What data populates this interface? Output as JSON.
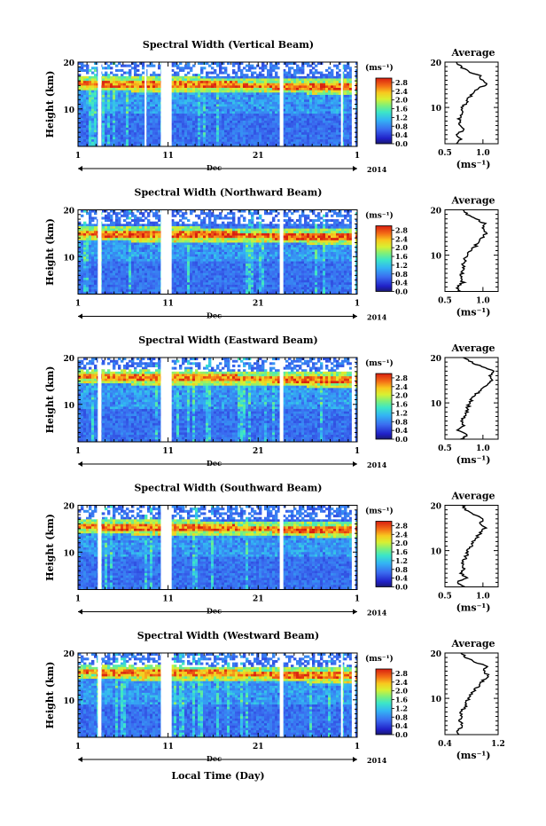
{
  "figure": {
    "x_title": "Local Time (Day)",
    "month_label": "Dec",
    "year_label": "2014"
  },
  "colorbar": {
    "unit": "(ms⁻¹)",
    "ticks": [
      "2.8",
      "2.4",
      "2.0",
      "1.6",
      "1.2",
      "0.8",
      "0.4",
      "0.0"
    ],
    "range": [
      0.0,
      3.0
    ]
  },
  "chart_data": [
    {
      "type": "heatmap",
      "title": "Spectral Width (Vertical Beam)",
      "ylabel": "Height (km)",
      "xlabel": "Local Time (Day)",
      "x_ticks": [
        "1",
        "11",
        "21",
        "1"
      ],
      "y_ticks": [
        "20",
        "10"
      ],
      "ylim": [
        2,
        20
      ],
      "data_gaps_days": [
        [
          3.2,
          3.6
        ],
        [
          8.4,
          8.6
        ],
        [
          10.2,
          11.4
        ],
        [
          23.4,
          23.8
        ],
        [
          30.2,
          30.4
        ],
        [
          31.4,
          31.8
        ]
      ],
      "peak_band_height_km": 15.5,
      "avg_profile": {
        "title": "Average",
        "xlabel": "(ms⁻¹)",
        "x_ticks": [
          "0.5",
          "1.0"
        ],
        "y_ticks": [
          "20",
          "10"
        ],
        "xlim": [
          0.5,
          1.2
        ],
        "height_km": [
          2,
          3,
          4,
          5,
          6,
          7,
          8,
          9,
          10,
          11,
          12,
          13,
          14,
          15,
          16,
          17,
          18,
          19,
          20
        ],
        "width": [
          0.65,
          0.72,
          0.66,
          0.74,
          0.7,
          0.68,
          0.7,
          0.72,
          0.74,
          0.78,
          0.8,
          0.86,
          0.92,
          1.05,
          0.98,
          0.95,
          0.8,
          0.7,
          0.65
        ]
      }
    },
    {
      "type": "heatmap",
      "title": "Spectral Width (Northward Beam)",
      "ylabel": "Height (km)",
      "xlabel": "Local Time (Day)",
      "x_ticks": [
        "1",
        "11",
        "21",
        "1"
      ],
      "y_ticks": [
        "20",
        "10"
      ],
      "ylim": [
        2,
        20
      ],
      "data_gaps_days": [
        [
          3.2,
          3.6
        ],
        [
          10.2,
          11.4
        ],
        [
          23.4,
          23.8
        ],
        [
          31.4,
          31.8
        ]
      ],
      "peak_band_height_km": 15.0,
      "avg_profile": {
        "title": "Average",
        "xlabel": "(ms⁻¹)",
        "x_ticks": [
          "0.5",
          "1.0"
        ],
        "y_ticks": [
          "20",
          "10"
        ],
        "xlim": [
          0.5,
          1.2
        ],
        "height_km": [
          2,
          3,
          4,
          5,
          6,
          7,
          8,
          9,
          10,
          11,
          12,
          13,
          14,
          15,
          16,
          17,
          18,
          19,
          20
        ],
        "width": [
          0.7,
          0.66,
          0.74,
          0.7,
          0.72,
          0.76,
          0.74,
          0.76,
          0.8,
          0.84,
          0.9,
          0.94,
          1.0,
          1.04,
          0.98,
          1.02,
          0.9,
          0.8,
          0.74
        ]
      }
    },
    {
      "type": "heatmap",
      "title": "Spectral Width (Eastward Beam)",
      "ylabel": "Height (km)",
      "xlabel": "Local Time (Day)",
      "x_ticks": [
        "1",
        "11",
        "21",
        "1"
      ],
      "y_ticks": [
        "20",
        "10"
      ],
      "ylim": [
        2,
        20
      ],
      "data_gaps_days": [
        [
          3.2,
          3.6
        ],
        [
          10.2,
          11.4
        ],
        [
          23.4,
          23.8
        ],
        [
          31.4,
          31.8
        ]
      ],
      "peak_band_height_km": 16.0,
      "avg_profile": {
        "title": "Average",
        "xlabel": "(ms⁻¹)",
        "x_ticks": [
          "0.5",
          "1.0"
        ],
        "y_ticks": [
          "20",
          "10"
        ],
        "xlim": [
          0.5,
          1.2
        ],
        "height_km": [
          2,
          3,
          4,
          5,
          6,
          7,
          8,
          9,
          10,
          11,
          12,
          13,
          14,
          15,
          16,
          17,
          18,
          19,
          20
        ],
        "width": [
          0.72,
          0.8,
          0.68,
          0.74,
          0.72,
          0.76,
          0.78,
          0.8,
          0.82,
          0.86,
          0.92,
          0.98,
          1.04,
          1.12,
          1.1,
          1.16,
          1.0,
          0.84,
          0.74
        ]
      }
    },
    {
      "type": "heatmap",
      "title": "Spectral Width (Southward Beam)",
      "ylabel": "Height (km)",
      "xlabel": "Local Time (Day)",
      "x_ticks": [
        "1",
        "11",
        "21",
        "1"
      ],
      "y_ticks": [
        "20",
        "10"
      ],
      "ylim": [
        2,
        20
      ],
      "data_gaps_days": [
        [
          3.2,
          3.6
        ],
        [
          10.2,
          11.4
        ],
        [
          23.4,
          23.8
        ],
        [
          31.4,
          31.8
        ]
      ],
      "peak_band_height_km": 15.5,
      "avg_profile": {
        "title": "Average",
        "xlabel": "(ms⁻¹)",
        "x_ticks": [
          "0.5",
          "1.0"
        ],
        "y_ticks": [
          "20",
          "10"
        ],
        "xlim": [
          0.5,
          1.2
        ],
        "height_km": [
          2,
          3,
          4,
          5,
          6,
          7,
          8,
          9,
          10,
          11,
          12,
          13,
          14,
          15,
          16,
          17,
          18,
          19,
          20
        ],
        "width": [
          0.74,
          0.66,
          0.78,
          0.7,
          0.74,
          0.72,
          0.76,
          0.78,
          0.8,
          0.84,
          0.88,
          0.92,
          0.98,
          1.02,
          0.96,
          1.0,
          0.88,
          0.78,
          0.72
        ]
      }
    },
    {
      "type": "heatmap",
      "title": "Spectral Width (Westward Beam)",
      "ylabel": "Height (km)",
      "xlabel": "Local Time (Day)",
      "x_ticks": [
        "1",
        "11",
        "21",
        "1"
      ],
      "y_ticks": [
        "20",
        "10"
      ],
      "ylim": [
        2,
        20
      ],
      "data_gaps_days": [
        [
          3.2,
          3.6
        ],
        [
          10.2,
          11.4
        ],
        [
          23.4,
          23.8
        ],
        [
          30.2,
          30.4
        ],
        [
          31.4,
          31.8
        ]
      ],
      "peak_band_height_km": 16.0,
      "avg_profile": {
        "title": "Average",
        "xlabel": "(ms⁻¹)",
        "x_ticks": [
          "0.4",
          "1.2"
        ],
        "y_ticks": [
          "20",
          "10"
        ],
        "xlim": [
          0.4,
          1.2
        ],
        "height_km": [
          2,
          3,
          4,
          5,
          6,
          7,
          8,
          9,
          10,
          11,
          12,
          13,
          14,
          15,
          16,
          17,
          18,
          19,
          20
        ],
        "width": [
          0.62,
          0.58,
          0.68,
          0.62,
          0.66,
          0.64,
          0.7,
          0.72,
          0.76,
          0.8,
          0.86,
          0.92,
          0.98,
          1.06,
          0.98,
          1.04,
          0.86,
          0.72,
          0.64
        ]
      }
    }
  ]
}
